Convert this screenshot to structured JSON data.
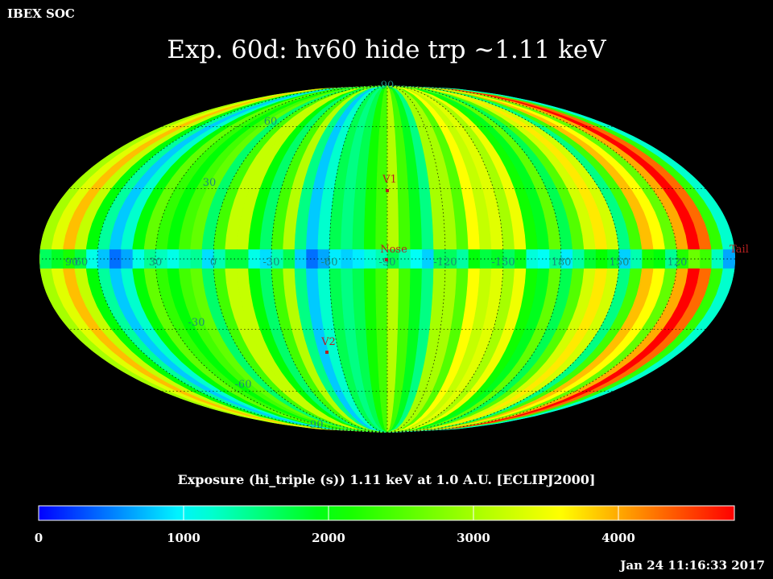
{
  "corner_label": "IBEX SOC",
  "title": "Exp.   60d: hv60 hide trp ~1.11 keV",
  "timestamp": "Jan 24 11:16:33 2017",
  "chart_data": {
    "type": "heatmap",
    "projection": "mollweide",
    "colorbar": {
      "label": "Exposure (hi_triple (s))  1.11 keV at 1.0 A.U. [ECLIPJ2000]",
      "min": 0,
      "max": 4800,
      "ticks": [
        "0",
        "1000",
        "2000",
        "3000",
        "4000"
      ],
      "tick_values": [
        0,
        1000,
        2000,
        3000,
        4000
      ]
    },
    "lon_labels": [
      "60",
      "30",
      "0",
      "-30",
      "-60",
      "-90",
      "-120",
      "-150",
      "180",
      "150",
      "120",
      "90"
    ],
    "lon_values": [
      60,
      30,
      0,
      -30,
      -60,
      -90,
      -120,
      -150,
      180,
      150,
      120,
      90
    ],
    "lat_labels": [
      "90",
      "60",
      "30",
      "-30",
      "-60",
      "-90"
    ],
    "lat_values": [
      90,
      60,
      30,
      -30,
      -60,
      -90
    ],
    "markers": [
      {
        "label": "V1",
        "lon": -87,
        "lat": 35
      },
      {
        "label": "Nose",
        "lon": -90,
        "lat": 0
      },
      {
        "label": "V2",
        "lon": -60,
        "lat": -36
      },
      {
        "label": "Tail",
        "lon": 90,
        "lat": 0
      }
    ],
    "exposure_by_longitude_band": [
      3000,
      3400,
      3900,
      3200,
      2000,
      1400,
      800,
      1200,
      2000,
      2600,
      2300,
      2000,
      2400,
      2600,
      1600,
      2400,
      3200,
      3200,
      2000,
      1600,
      2400,
      3100,
      1500,
      800,
      1200,
      1700,
      1500,
      1700,
      2100,
      2400,
      3100,
      2400,
      1900,
      1500,
      3000,
      3000,
      2500,
      3600,
      3200,
      3400,
      3000,
      3500,
      2100,
      1900,
      2600,
      1700,
      2500,
      3300,
      3700,
      3300,
      1500,
      2400,
      3900,
      3600,
      2600,
      4000,
      4800,
      4300,
      2300,
      1200
    ],
    "band_bounds_lon": [
      -120,
      -150
    ]
  }
}
